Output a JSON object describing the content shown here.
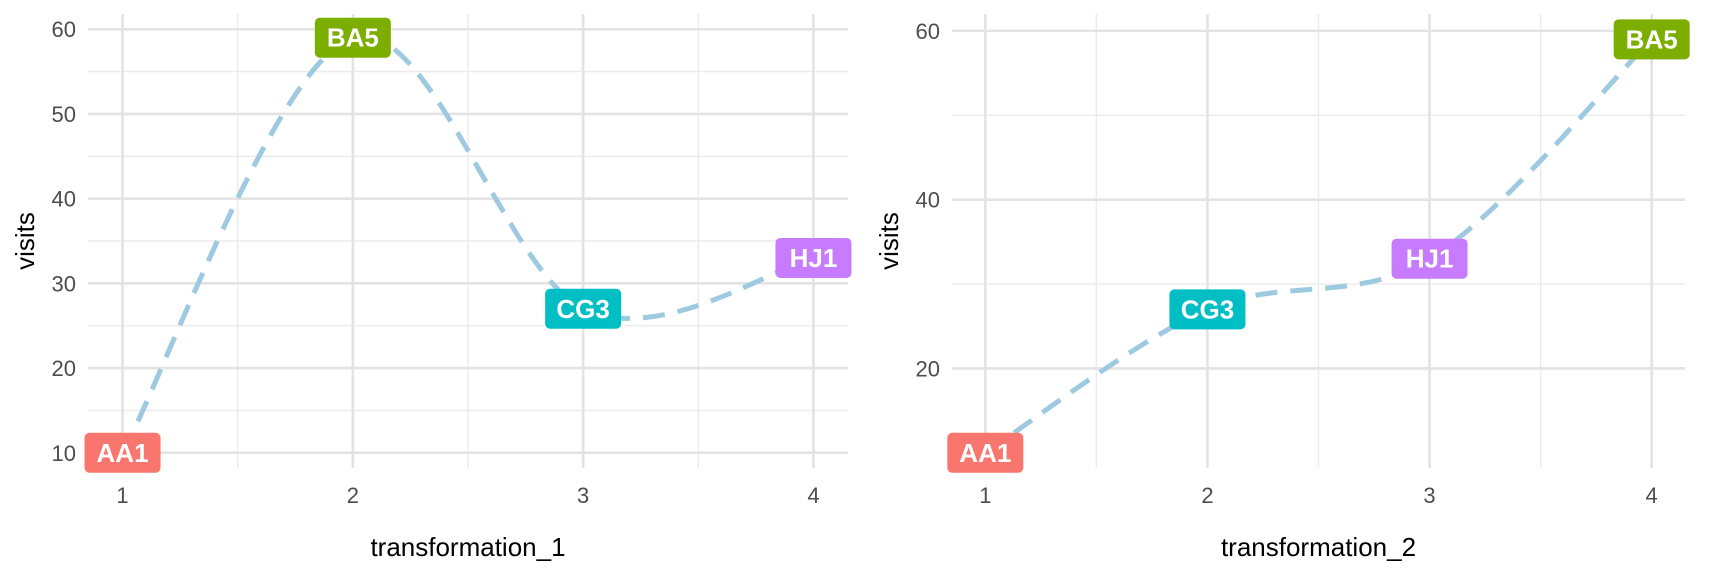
{
  "chart_data": [
    {
      "type": "line",
      "xlabel": "transformation_1",
      "ylabel": "visits",
      "xlim": [
        0.85,
        4.15
      ],
      "ylim": [
        8.2,
        61.8
      ],
      "x_ticks": [
        1,
        2,
        3,
        4
      ],
      "y_ticks": [
        10,
        20,
        30,
        40,
        50,
        60
      ],
      "grid": true,
      "line_style": "dashed",
      "line_color": "#9ecae1",
      "points": [
        {
          "label": "AA1",
          "x": 1,
          "y": 10,
          "color": "#f8766d"
        },
        {
          "label": "BA5",
          "x": 2,
          "y": 59,
          "color": "#7cae00"
        },
        {
          "label": "CG3",
          "x": 3,
          "y": 27,
          "color": "#00bfc4"
        },
        {
          "label": "HJ1",
          "x": 4,
          "y": 33,
          "color": "#c77cff"
        }
      ]
    },
    {
      "type": "line",
      "xlabel": "transformation_2",
      "ylabel": "visits",
      "xlim": [
        0.85,
        4.15
      ],
      "ylim": [
        8.2,
        62.0
      ],
      "x_ticks": [
        1,
        2,
        3,
        4
      ],
      "y_ticks": [
        20,
        40,
        60
      ],
      "grid": true,
      "line_style": "dashed",
      "line_color": "#9ecae1",
      "points": [
        {
          "label": "AA1",
          "x": 1,
          "y": 10,
          "color": "#f8766d"
        },
        {
          "label": "CG3",
          "x": 2,
          "y": 27,
          "color": "#00bfc4"
        },
        {
          "label": "HJ1",
          "x": 3,
          "y": 33,
          "color": "#c77cff"
        },
        {
          "label": "BA5",
          "x": 4,
          "y": 59,
          "color": "#7cae00"
        }
      ]
    }
  ]
}
